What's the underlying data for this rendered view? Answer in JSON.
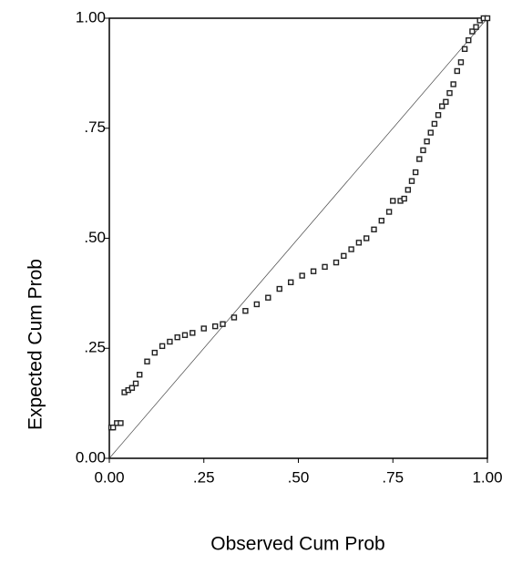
{
  "chart_data": {
    "type": "scatter",
    "x_label": "Observed Cum Prob",
    "y_label": "Expected Cum Prob",
    "xlim": [
      0,
      1
    ],
    "ylim": [
      0,
      1
    ],
    "xticks": [
      {
        "value": 0,
        "label": "0.00"
      },
      {
        "value": 0.25,
        "label": ".25"
      },
      {
        "value": 0.5,
        "label": ".50"
      },
      {
        "value": 0.75,
        "label": ".75"
      },
      {
        "value": 1,
        "label": "1.00"
      }
    ],
    "yticks": [
      {
        "value": 0,
        "label": "0.00"
      },
      {
        "value": 0.25,
        "label": ".25"
      },
      {
        "value": 0.5,
        "label": ".50"
      },
      {
        "value": 0.75,
        "label": ".75"
      },
      {
        "value": 1,
        "label": "1.00"
      }
    ],
    "color": "#222222",
    "x": [
      0.005,
      0.01,
      0.02,
      0.03,
      0.04,
      0.05,
      0.06,
      0.07,
      0.08,
      0.1,
      0.12,
      0.14,
      0.16,
      0.18,
      0.2,
      0.22,
      0.25,
      0.28,
      0.3,
      0.33,
      0.36,
      0.39,
      0.42,
      0.45,
      0.48,
      0.51,
      0.54,
      0.57,
      0.6,
      0.62,
      0.64,
      0.66,
      0.68,
      0.7,
      0.72,
      0.74,
      0.75,
      0.77,
      0.78,
      0.79,
      0.8,
      0.81,
      0.82,
      0.83,
      0.84,
      0.85,
      0.86,
      0.87,
      0.88,
      0.89,
      0.9,
      0.91,
      0.92,
      0.93,
      0.94,
      0.95,
      0.96,
      0.97,
      0.98,
      0.99,
      1.0
    ],
    "y": [
      0.07,
      0.07,
      0.08,
      0.08,
      0.15,
      0.155,
      0.16,
      0.17,
      0.19,
      0.22,
      0.24,
      0.255,
      0.265,
      0.275,
      0.28,
      0.285,
      0.295,
      0.3,
      0.305,
      0.32,
      0.335,
      0.35,
      0.365,
      0.385,
      0.4,
      0.415,
      0.425,
      0.435,
      0.445,
      0.46,
      0.475,
      0.49,
      0.5,
      0.52,
      0.54,
      0.56,
      0.585,
      0.585,
      0.59,
      0.61,
      0.63,
      0.65,
      0.68,
      0.7,
      0.72,
      0.74,
      0.76,
      0.78,
      0.8,
      0.81,
      0.83,
      0.85,
      0.88,
      0.9,
      0.93,
      0.95,
      0.97,
      0.98,
      0.995,
      1.0,
      1.0
    ]
  }
}
